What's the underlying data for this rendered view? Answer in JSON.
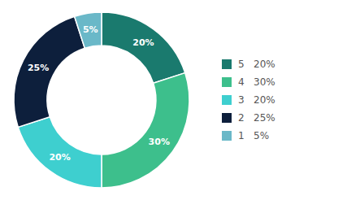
{
  "chart_data": {
    "type": "donut",
    "categories": [
      "5   20%",
      "4   30%",
      "3   20%",
      "2   25%",
      "1   5%"
    ],
    "values": [
      20,
      30,
      20,
      25,
      5
    ],
    "value_labels": [
      "20%",
      "30%",
      "20%",
      "25%",
      "5%"
    ],
    "colors": [
      "#1a7a6e",
      "#3dbf8c",
      "#3ecfcf",
      "#0d1f3c",
      "#6ab8c8"
    ],
    "data_labels": true,
    "legend": "right"
  }
}
